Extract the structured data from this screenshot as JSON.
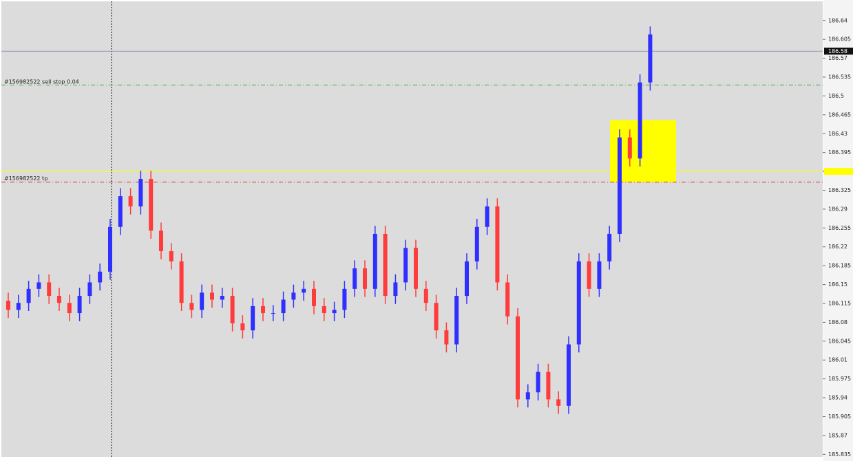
{
  "chart_data": {
    "type": "candlestick",
    "up_color": "#2f2fff",
    "down_color": "#ff3b3b",
    "ylim": [
      185.829,
      186.678
    ],
    "yticks": [
      186.64,
      186.605,
      186.57,
      186.535,
      186.5,
      186.465,
      186.43,
      186.395,
      186.36,
      186.325,
      186.29,
      186.255,
      186.22,
      186.185,
      186.15,
      186.115,
      186.08,
      186.045,
      186.01,
      185.975,
      185.94,
      185.905,
      185.87,
      185.835
    ],
    "open": [
      186.12,
      186.103,
      186.116,
      186.142,
      186.154,
      186.129,
      186.116,
      186.097,
      186.129,
      186.154,
      186.174,
      186.257,
      186.314,
      186.295,
      186.346,
      186.25,
      186.212,
      186.193,
      186.116,
      186.103,
      186.135,
      186.122,
      186.129,
      186.078,
      186.065,
      186.11,
      186.097,
      186.097,
      186.122,
      186.135,
      186.142,
      186.11,
      186.097,
      186.103,
      186.142,
      186.18,
      186.142,
      186.244,
      186.129,
      186.154,
      186.218,
      186.142,
      186.116,
      186.065,
      186.039,
      186.129,
      186.193,
      186.257,
      186.295,
      186.154,
      186.091,
      185.937,
      185.95,
      185.988,
      185.937,
      185.925,
      186.039,
      186.193,
      186.142,
      186.193,
      186.244,
      186.423,
      186.384,
      186.525
    ],
    "high": [
      186.135,
      186.131,
      186.157,
      186.169,
      186.169,
      186.144,
      186.131,
      186.144,
      186.169,
      186.189,
      186.272,
      186.329,
      186.329,
      186.361,
      186.361,
      186.265,
      186.227,
      186.208,
      186.131,
      186.15,
      186.15,
      186.144,
      186.144,
      186.093,
      186.125,
      186.125,
      186.112,
      186.137,
      186.15,
      186.157,
      186.157,
      186.125,
      186.118,
      186.157,
      186.195,
      186.195,
      186.259,
      186.259,
      186.169,
      186.233,
      186.233,
      186.157,
      186.131,
      186.08,
      186.144,
      186.208,
      186.272,
      186.31,
      186.31,
      186.169,
      186.106,
      185.965,
      186.003,
      186.003,
      185.952,
      186.054,
      186.208,
      186.208,
      186.208,
      186.259,
      186.438,
      186.438,
      186.54,
      186.629
    ],
    "low": [
      186.088,
      186.088,
      186.101,
      186.127,
      186.114,
      186.101,
      186.082,
      186.082,
      186.114,
      186.139,
      186.159,
      186.242,
      186.28,
      186.28,
      186.235,
      186.197,
      186.178,
      186.101,
      186.088,
      186.088,
      186.107,
      186.107,
      186.063,
      186.05,
      186.05,
      186.082,
      186.082,
      186.082,
      186.107,
      186.12,
      186.095,
      186.082,
      186.082,
      186.088,
      186.127,
      186.127,
      186.127,
      186.114,
      186.114,
      186.139,
      186.127,
      186.101,
      186.05,
      186.024,
      186.024,
      186.114,
      186.178,
      186.242,
      186.139,
      186.076,
      185.922,
      185.922,
      185.935,
      185.922,
      185.91,
      185.91,
      186.024,
      186.127,
      186.127,
      186.178,
      186.229,
      186.369,
      186.369,
      186.51
    ],
    "close": [
      186.103,
      186.116,
      186.142,
      186.154,
      186.129,
      186.116,
      186.097,
      186.129,
      186.154,
      186.174,
      186.257,
      186.314,
      186.295,
      186.346,
      186.25,
      186.212,
      186.193,
      186.116,
      186.103,
      186.135,
      186.122,
      186.129,
      186.078,
      186.065,
      186.11,
      186.097,
      186.097,
      186.122,
      186.135,
      186.142,
      186.11,
      186.097,
      186.103,
      186.142,
      186.18,
      186.142,
      186.244,
      186.129,
      186.154,
      186.218,
      186.142,
      186.116,
      186.065,
      186.039,
      186.129,
      186.193,
      186.257,
      186.295,
      186.154,
      186.091,
      185.937,
      185.95,
      185.988,
      185.937,
      185.925,
      186.039,
      186.193,
      186.142,
      186.193,
      186.244,
      186.423,
      186.384,
      186.525,
      186.614
    ],
    "price_lines": [
      {
        "value": 186.583,
        "color": "#8a8aa8",
        "style": "solid",
        "label": "186.58"
      },
      {
        "value": 186.52,
        "color": "#3cb043",
        "style": "dashdot",
        "text": "#156982522 sell stop 0.04"
      },
      {
        "value": 186.36,
        "color": "#ffff00",
        "style": "solid"
      },
      {
        "value": 186.34,
        "color": "#e03030",
        "style": "dashdot",
        "text": "#156982522 tp"
      }
    ],
    "rectangle": {
      "from": 186.34,
      "to": 186.455,
      "color": "#ffff00"
    }
  }
}
